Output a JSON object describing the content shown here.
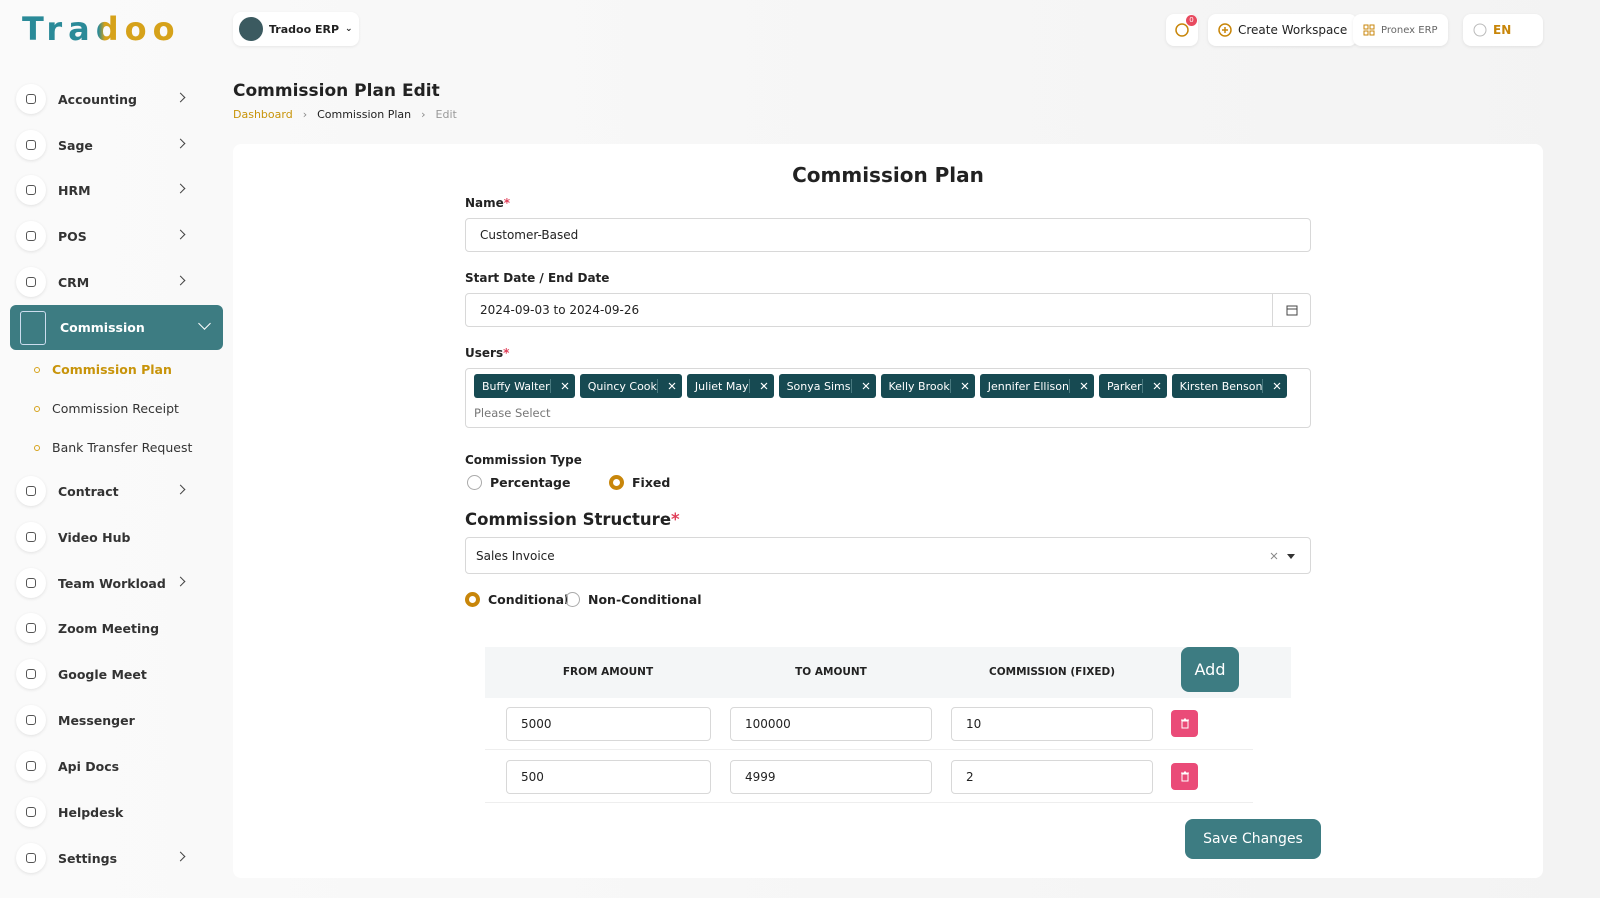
{
  "logo": "Tradoo",
  "topbar": {
    "company": "Tradoo ERP",
    "notification_count": 0,
    "create_workspace": "Create Workspace",
    "workspace": "Pronex ERP",
    "language": "EN"
  },
  "sidebar": {
    "items": [
      "Accounting",
      "Sage",
      "HRM",
      "POS",
      "CRM",
      "Commission",
      "Contract",
      "Video Hub",
      "Team Workload",
      "Zoom Meeting",
      "Google Meet",
      "Messenger",
      "Api Docs",
      "Helpdesk",
      "Settings"
    ],
    "submenu": [
      "Commission Plan",
      "Commission Receipt",
      "Bank Transfer Request"
    ]
  },
  "header": {
    "title": "Commission Plan Edit",
    "breadcrumb": [
      "Dashboard",
      "Commission Plan",
      "Edit"
    ]
  },
  "form": {
    "title": "Commission Plan",
    "required_mark": "*",
    "name_label": "Name",
    "name_value": "Customer-Based",
    "date_label": "Start Date / End Date",
    "date_value": "2024-09-03 to 2024-09-26",
    "users_label": "Users",
    "users": [
      "Buffy Walter",
      "Quincy Cook",
      "Juliet May",
      "Sonya Sims",
      "Kelly Brook",
      "Jennifer Ellison",
      "Parker",
      "Kirsten Benson"
    ],
    "users_placeholder": "Please Select",
    "type_label": "Commission Type",
    "type_options": [
      "Percentage",
      "Fixed"
    ],
    "structure_label": "Commission Structure",
    "structure_value": "Sales Invoice",
    "condition_options": [
      "Conditional",
      "Non-Conditional"
    ],
    "table": {
      "headers": [
        "FROM AMOUNT",
        "TO AMOUNT",
        "COMMISSION (FIXED)"
      ],
      "add": "Add",
      "rows": [
        [
          5000,
          100000,
          10
        ],
        [
          500,
          4999,
          2
        ]
      ]
    },
    "save": "Save Changes"
  }
}
